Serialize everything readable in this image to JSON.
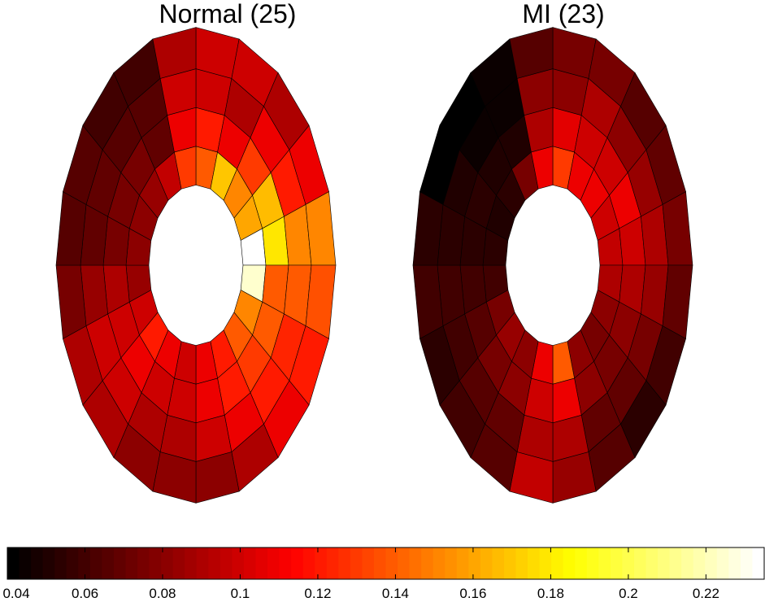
{
  "chart_data": {
    "type": "heatmap",
    "colormap": "hot",
    "colorbar": {
      "vmin": 0.04,
      "vmax": 0.235,
      "ticks": [
        0.04,
        0.06,
        0.08,
        0.1,
        0.12,
        0.14,
        0.16,
        0.18,
        0.2,
        0.22
      ],
      "tick_labels": [
        "0.04",
        "0.06",
        "0.08",
        "0.1",
        "0.12",
        "0.14",
        "0.16",
        "0.18",
        "0.2",
        "0.22"
      ],
      "levels": 64
    },
    "sector_order": "clockwise from top, 20 sectors, 18 degrees each",
    "ring_order": "innermost ring first",
    "panels": [
      {
        "title": "Normal (25)",
        "values": [
          [
            0.14,
            0.17,
            0.15,
            0.16,
            0.235,
            0.225,
            0.15,
            0.14,
            0.12,
            0.11,
            0.1,
            0.11,
            0.12,
            0.1,
            0.085,
            0.08,
            0.08,
            0.085,
            0.095,
            0.13
          ],
          [
            0.12,
            0.11,
            0.13,
            0.165,
            0.18,
            0.14,
            0.14,
            0.13,
            0.12,
            0.11,
            0.1,
            0.1,
            0.11,
            0.1,
            0.09,
            0.075,
            0.075,
            0.075,
            0.07,
            0.11
          ],
          [
            0.1,
            0.09,
            0.11,
            0.12,
            0.15,
            0.14,
            0.125,
            0.12,
            0.11,
            0.1,
            0.09,
            0.09,
            0.1,
            0.1,
            0.085,
            0.07,
            0.07,
            0.065,
            0.065,
            0.1
          ],
          [
            0.1,
            0.1,
            0.09,
            0.11,
            0.15,
            0.135,
            0.12,
            0.11,
            0.09,
            0.08,
            0.08,
            0.08,
            0.09,
            0.09,
            0.075,
            0.065,
            0.065,
            0.06,
            0.06,
            0.09
          ]
        ]
      },
      {
        "title": "MI (23)",
        "values": [
          [
            0.13,
            0.11,
            0.11,
            0.1,
            0.095,
            0.09,
            0.08,
            0.075,
            0.08,
            0.14,
            0.11,
            0.08,
            0.085,
            0.075,
            0.06,
            0.055,
            0.05,
            0.055,
            0.075,
            0.11
          ],
          [
            0.105,
            0.1,
            0.1,
            0.11,
            0.1,
            0.09,
            0.08,
            0.075,
            0.08,
            0.11,
            0.1,
            0.08,
            0.075,
            0.065,
            0.06,
            0.055,
            0.055,
            0.05,
            0.05,
            0.09
          ],
          [
            0.08,
            0.09,
            0.08,
            0.085,
            0.09,
            0.085,
            0.075,
            0.07,
            0.07,
            0.09,
            0.09,
            0.07,
            0.065,
            0.06,
            0.06,
            0.055,
            0.05,
            0.045,
            0.045,
            0.08
          ],
          [
            0.075,
            0.075,
            0.065,
            0.07,
            0.075,
            0.07,
            0.06,
            0.055,
            0.065,
            0.085,
            0.095,
            0.065,
            0.06,
            0.055,
            0.06,
            0.055,
            0.04,
            0.04,
            0.045,
            0.065
          ]
        ]
      }
    ]
  }
}
